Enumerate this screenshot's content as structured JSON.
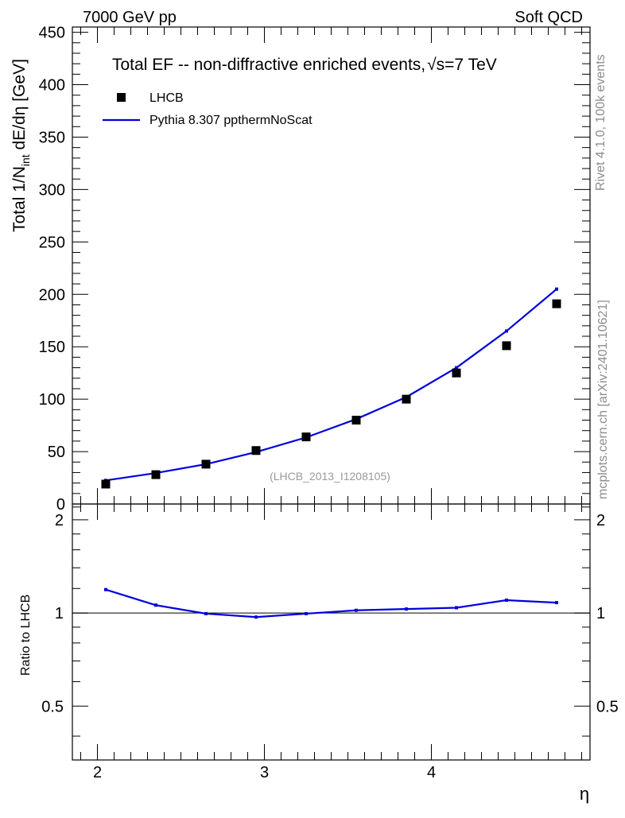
{
  "header": {
    "left": "7000 GeV pp",
    "right": "Soft QCD"
  },
  "side_labels": {
    "rivet": "Rivet 4.1.0,  100k events",
    "mcplots": "mcplots.cern.ch [arXiv:2401.10621]"
  },
  "chart_data": {
    "type": "scatter",
    "title": "Total EF -- non-diffractive enriched events, √s=7 TeV",
    "title_main": "Total EF -- non-diffractive enriched events,",
    "title_sqrt": "√s=7 TeV",
    "ylabel": "Total 1/N_int  dE/dη [GeV]",
    "ylabel_parts": {
      "a": "Total 1/N",
      "sub": "int",
      "b": "  dE/dη [GeV]"
    },
    "xlabel": "η",
    "ratio_ylabel": "Ratio to LHCB",
    "watermark": "(LHCB_2013_I1208105)",
    "xlim": [
      1.85,
      4.95
    ],
    "ylim": [
      0,
      455
    ],
    "ratio_ylim": [
      0.335,
      2.25
    ],
    "x_ticks": [
      "2",
      "3",
      "4"
    ],
    "x_tick_values": [
      2,
      3,
      4
    ],
    "y_ticks": [
      "0",
      "50",
      "100",
      "150",
      "200",
      "250",
      "300",
      "350",
      "400",
      "450"
    ],
    "y_tick_values": [
      0,
      50,
      100,
      150,
      200,
      250,
      300,
      350,
      400,
      450
    ],
    "ratio_ticks": [
      "0.5",
      "1",
      "2"
    ],
    "ratio_tick_values": [
      0.5,
      1,
      2
    ],
    "legend": {
      "data_label": "LHCB",
      "mc_label": "Pythia 8.307 ppthermNoScat"
    },
    "series": [
      {
        "name": "LHCB",
        "x": [
          2.05,
          2.35,
          2.65,
          2.95,
          3.25,
          3.55,
          3.85,
          4.15,
          4.45,
          4.75
        ],
        "values": [
          19,
          28,
          38,
          51,
          64,
          80,
          100,
          125,
          151,
          191
        ],
        "color": "#000000"
      },
      {
        "name": "Pythia 8.307 ppthermNoScat",
        "x": [
          2.05,
          2.35,
          2.65,
          2.95,
          3.25,
          3.55,
          3.85,
          4.15,
          4.45,
          4.75
        ],
        "values": [
          22.5,
          29.5,
          38,
          49.5,
          63.5,
          81,
          102,
          130,
          165,
          205
        ],
        "color": "#0000dd"
      }
    ],
    "ratio": {
      "x": [
        2.05,
        2.35,
        2.65,
        2.95,
        3.25,
        3.55,
        3.85,
        4.15,
        4.45,
        4.75
      ],
      "values": [
        1.19,
        1.06,
        0.995,
        0.97,
        0.995,
        1.02,
        1.03,
        1.04,
        1.1,
        1.08
      ]
    }
  }
}
